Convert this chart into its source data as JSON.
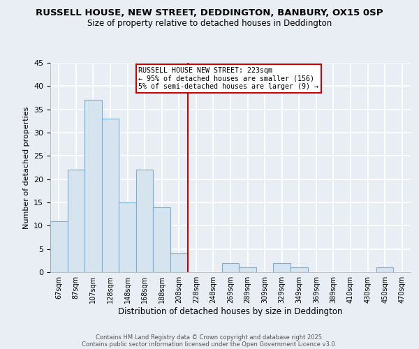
{
  "title": "RUSSELL HOUSE, NEW STREET, DEDDINGTON, BANBURY, OX15 0SP",
  "subtitle": "Size of property relative to detached houses in Deddington",
  "xlabel": "Distribution of detached houses by size in Deddington",
  "ylabel": "Number of detached properties",
  "bin_labels": [
    "67sqm",
    "87sqm",
    "107sqm",
    "128sqm",
    "148sqm",
    "168sqm",
    "188sqm",
    "208sqm",
    "228sqm",
    "248sqm",
    "269sqm",
    "289sqm",
    "309sqm",
    "329sqm",
    "349sqm",
    "369sqm",
    "389sqm",
    "410sqm",
    "430sqm",
    "450sqm",
    "470sqm"
  ],
  "bar_heights": [
    11,
    22,
    37,
    33,
    15,
    22,
    14,
    4,
    0,
    0,
    2,
    1,
    0,
    2,
    1,
    0,
    0,
    0,
    0,
    1,
    0
  ],
  "bar_color": "#d6e4f0",
  "bar_edge_color": "#7aaed4",
  "vline_color": "#cc0000",
  "vline_x": 7.5,
  "annotation_title": "RUSSELL HOUSE NEW STREET: 223sqm",
  "annotation_line2": "← 95% of detached houses are smaller (156)",
  "annotation_line3": "5% of semi-detached houses are larger (9) →",
  "annotation_box_facecolor": "#ffffff",
  "annotation_box_edgecolor": "#cc0000",
  "ylim": [
    0,
    45
  ],
  "yticks": [
    0,
    5,
    10,
    15,
    20,
    25,
    30,
    35,
    40,
    45
  ],
  "background_color": "#e8eef4",
  "grid_color": "#ffffff",
  "footer_line1": "Contains HM Land Registry data © Crown copyright and database right 2025.",
  "footer_line2": "Contains public sector information licensed under the Open Government Licence v3.0."
}
